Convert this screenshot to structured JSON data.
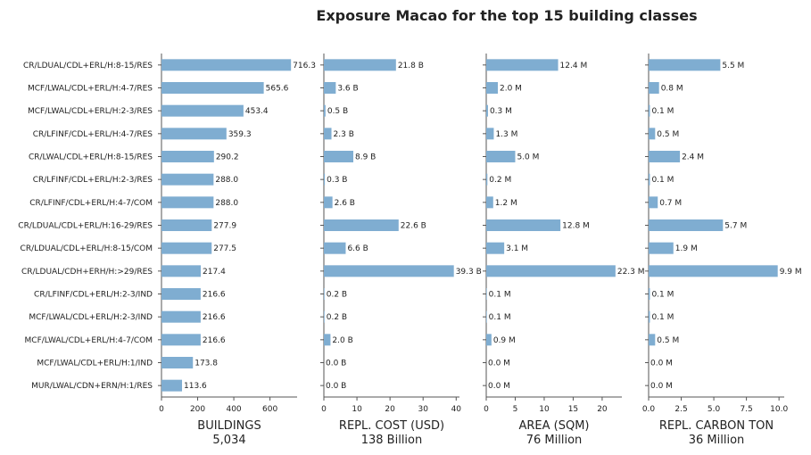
{
  "title": "Exposure Macao for the top 15 building classes",
  "chart_data": {
    "type": "bar",
    "orientation": "horizontal",
    "bar_color": "#7fadd1",
    "categories": [
      "CR/LDUAL/CDL+ERL/H:8-15/RES",
      "MCF/LWAL/CDL+ERL/H:4-7/RES",
      "MCF/LWAL/CDL+ERL/H:2-3/RES",
      "CR/LFINF/CDL+ERL/H:4-7/RES",
      "CR/LWAL/CDL+ERL/H:8-15/RES",
      "CR/LFINF/CDL+ERL/H:2-3/RES",
      "CR/LFINF/CDL+ERL/H:4-7/COM",
      "CR/LDUAL/CDL+ERL/H:16-29/RES",
      "CR/LDUAL/CDL+ERL/H:8-15/COM",
      "CR/LDUAL/CDH+ERH/H:>29/RES",
      "CR/LFINF/CDL+ERL/H:2-3/IND",
      "MCF/LWAL/CDL+ERL/H:2-3/IND",
      "MCF/LWAL/CDL+ERL/H:4-7/COM",
      "MCF/LWAL/CDL+ERL/H:1/IND",
      "MUR/LWAL/CDN+ERN/H:1/RES"
    ],
    "panels": [
      {
        "xlabel": "BUILDINGS",
        "total": "5,034",
        "xlim": [
          0,
          750
        ],
        "ticks": [
          0,
          200,
          400,
          600
        ],
        "tick_labels": [
          "0",
          "200",
          "400",
          "600"
        ],
        "values": [
          716.3,
          565.6,
          453.4,
          359.3,
          290.2,
          288.0,
          288.0,
          277.9,
          277.5,
          217.4,
          216.6,
          216.6,
          216.6,
          173.8,
          113.6
        ],
        "labels": [
          "716.3",
          "565.6",
          "453.4",
          "359.3",
          "290.2",
          "288.0",
          "288.0",
          "277.9",
          "277.5",
          "217.4",
          "216.6",
          "216.6",
          "216.6",
          "173.8",
          "113.6"
        ]
      },
      {
        "xlabel": "REPL. COST (USD)",
        "total": "138 Billion",
        "xlim": [
          0,
          41
        ],
        "ticks": [
          0,
          10,
          20,
          30,
          40
        ],
        "tick_labels": [
          "0",
          "10",
          "20",
          "30",
          "40"
        ],
        "values": [
          21.8,
          3.6,
          0.5,
          2.3,
          8.9,
          0.3,
          2.6,
          22.6,
          6.6,
          39.3,
          0.2,
          0.2,
          2.0,
          0.0,
          0.0
        ],
        "labels": [
          "21.8 B",
          "3.6 B",
          "0.5 B",
          "2.3 B",
          "8.9 B",
          "0.3 B",
          "2.6 B",
          "22.6 B",
          "6.6 B",
          "39.3 B",
          "0.2 B",
          "0.2 B",
          "2.0 B",
          "0.0 B",
          "0.0 B"
        ]
      },
      {
        "xlabel": "AREA (SQM)",
        "total": "76 Million",
        "xlim": [
          0,
          23.4
        ],
        "ticks": [
          0,
          5,
          10,
          15,
          20
        ],
        "tick_labels": [
          "0",
          "5",
          "10",
          "15",
          "20"
        ],
        "values": [
          12.4,
          2.0,
          0.3,
          1.3,
          5.0,
          0.2,
          1.2,
          12.8,
          3.1,
          22.3,
          0.1,
          0.1,
          0.9,
          0.0,
          0.0
        ],
        "labels": [
          "12.4 M",
          "2.0 M",
          "0.3 M",
          "1.3 M",
          "5.0 M",
          "0.2 M",
          "1.2 M",
          "12.8 M",
          "3.1 M",
          "22.3 M",
          "0.1 M",
          "0.1 M",
          "0.9 M",
          "0.0 M",
          "0.0 M"
        ]
      },
      {
        "xlabel": "REPL. CARBON TON",
        "total": "36 Million",
        "xlim": [
          0,
          10.4
        ],
        "ticks": [
          0,
          2.5,
          5,
          7.5,
          10
        ],
        "tick_labels": [
          "0.0",
          "2.5",
          "5.0",
          "7.5",
          "10.0"
        ],
        "values": [
          5.5,
          0.8,
          0.1,
          0.5,
          2.4,
          0.1,
          0.7,
          5.7,
          1.9,
          9.9,
          0.1,
          0.1,
          0.5,
          0.0,
          0.0
        ],
        "labels": [
          "5.5 M",
          "0.8 M",
          "0.1 M",
          "0.5 M",
          "2.4 M",
          "0.1 M",
          "0.7 M",
          "5.7 M",
          "1.9 M",
          "9.9 M",
          "0.1 M",
          "0.1 M",
          "0.5 M",
          "0.0 M",
          "0.0 M"
        ]
      }
    ]
  }
}
